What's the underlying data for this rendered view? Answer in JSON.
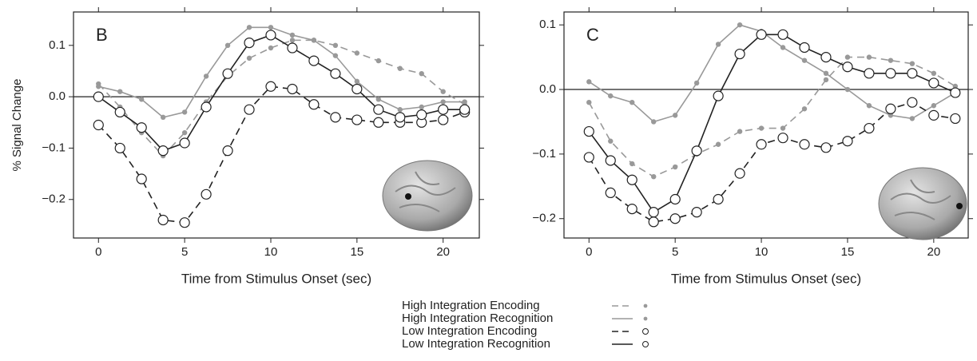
{
  "chart_data": [
    {
      "type": "line",
      "panel_label": "B",
      "ylabel": "% Signal Change",
      "xlabel": "Time from Stimulus Onset (sec)",
      "x": [
        0,
        1.25,
        2.5,
        3.75,
        5,
        6.25,
        7.5,
        8.75,
        10,
        11.25,
        12.5,
        13.75,
        15,
        16.25,
        17.5,
        18.75,
        20,
        21.25
      ],
      "xlim": [
        -1.45,
        22.1
      ],
      "xticks": [
        0,
        5,
        10,
        15,
        20
      ],
      "ylim": [
        -0.275,
        0.165
      ],
      "yticks": [
        {
          "value": 0.1,
          "label": "0.1"
        },
        {
          "value": 0,
          "label": "0.0"
        },
        {
          "value": -0.1,
          "label": "−0.1"
        },
        {
          "value": -0.2,
          "label": "−0.2"
        }
      ],
      "hline": 0,
      "series": [
        {
          "color": "#999999",
          "dash": "dashed",
          "marker": "dot",
          "values": [
            0.025,
            -0.02,
            -0.07,
            -0.115,
            -0.07,
            -0.01,
            0.04,
            0.075,
            0.095,
            0.11,
            0.11,
            0.1,
            0.085,
            0.07,
            0.055,
            0.045,
            0.01,
            -0.015
          ]
        },
        {
          "color": "#999999",
          "dash": "solid",
          "marker": "dot",
          "values": [
            0.02,
            0.01,
            -0.005,
            -0.04,
            -0.03,
            0.04,
            0.1,
            0.135,
            0.135,
            0.12,
            0.11,
            0.08,
            0.03,
            -0.005,
            -0.025,
            -0.02,
            -0.01,
            -0.01
          ]
        },
        {
          "color": "#222222",
          "dash": "dashed",
          "marker": "circle",
          "values": [
            -0.055,
            -0.1,
            -0.16,
            -0.24,
            -0.245,
            -0.19,
            -0.105,
            -0.025,
            0.02,
            0.015,
            -0.015,
            -0.04,
            -0.045,
            -0.05,
            -0.05,
            -0.05,
            -0.045,
            -0.03
          ]
        },
        {
          "color": "#222222",
          "dash": "solid",
          "marker": "circle",
          "values": [
            0,
            -0.03,
            -0.06,
            -0.105,
            -0.09,
            -0.02,
            0.045,
            0.105,
            0.12,
            0.095,
            0.07,
            0.045,
            0.015,
            -0.025,
            -0.04,
            -0.035,
            -0.025,
            -0.025
          ]
        }
      ]
    },
    {
      "type": "line",
      "panel_label": "C",
      "xlabel": "Time from Stimulus Onset (sec)",
      "x": [
        0,
        1.25,
        2.5,
        3.75,
        5,
        6.25,
        7.5,
        8.75,
        10,
        11.25,
        12.5,
        13.75,
        15,
        16.25,
        17.5,
        18.75,
        20,
        21.25
      ],
      "xlim": [
        -1.45,
        22.0
      ],
      "xticks": [
        0,
        5,
        10,
        15,
        20
      ],
      "ylim": [
        -0.23,
        0.12
      ],
      "yticks": [
        {
          "value": 0.1,
          "label": "0.1"
        },
        {
          "value": 0,
          "label": "0.0"
        },
        {
          "value": -0.1,
          "label": "−0.1"
        },
        {
          "value": -0.2,
          "label": "−0.2"
        }
      ],
      "hline": 0,
      "series": [
        {
          "color": "#999999",
          "dash": "dashed",
          "marker": "dot",
          "values": [
            -0.02,
            -0.08,
            -0.115,
            -0.135,
            -0.12,
            -0.1,
            -0.085,
            -0.065,
            -0.06,
            -0.06,
            -0.03,
            0.015,
            0.05,
            0.05,
            0.045,
            0.04,
            0.025,
            0.005
          ]
        },
        {
          "color": "#999999",
          "dash": "solid",
          "marker": "dot",
          "values": [
            0.012,
            -0.01,
            -0.02,
            -0.05,
            -0.04,
            0.01,
            0.07,
            0.1,
            0.09,
            0.065,
            0.045,
            0.025,
            0,
            -0.025,
            -0.04,
            -0.045,
            -0.025,
            -0.005
          ]
        },
        {
          "color": "#222222",
          "dash": "dashed",
          "marker": "circle",
          "values": [
            -0.105,
            -0.16,
            -0.185,
            -0.205,
            -0.2,
            -0.19,
            -0.17,
            -0.13,
            -0.085,
            -0.075,
            -0.085,
            -0.09,
            -0.08,
            -0.06,
            -0.03,
            -0.02,
            -0.04,
            -0.045
          ]
        },
        {
          "color": "#222222",
          "dash": "solid",
          "marker": "circle",
          "values": [
            -0.065,
            -0.11,
            -0.14,
            -0.19,
            -0.17,
            -0.095,
            -0.01,
            0.055,
            0.085,
            0.085,
            0.065,
            0.05,
            0.035,
            0.025,
            0.025,
            0.025,
            0.01,
            -0.005
          ]
        }
      ]
    }
  ],
  "legend": {
    "entries": [
      {
        "name": "High Integration Encoding",
        "color": "#999999",
        "dash": "dashed",
        "marker": "dot"
      },
      {
        "name": "High Integration Recognition",
        "color": "#999999",
        "dash": "solid",
        "marker": "dot"
      },
      {
        "name": "Low Integration Encoding",
        "color": "#222222",
        "dash": "dashed",
        "marker": "circle"
      },
      {
        "name": "Low Integration Recognition",
        "color": "#222222",
        "dash": "solid",
        "marker": "circle"
      }
    ]
  }
}
